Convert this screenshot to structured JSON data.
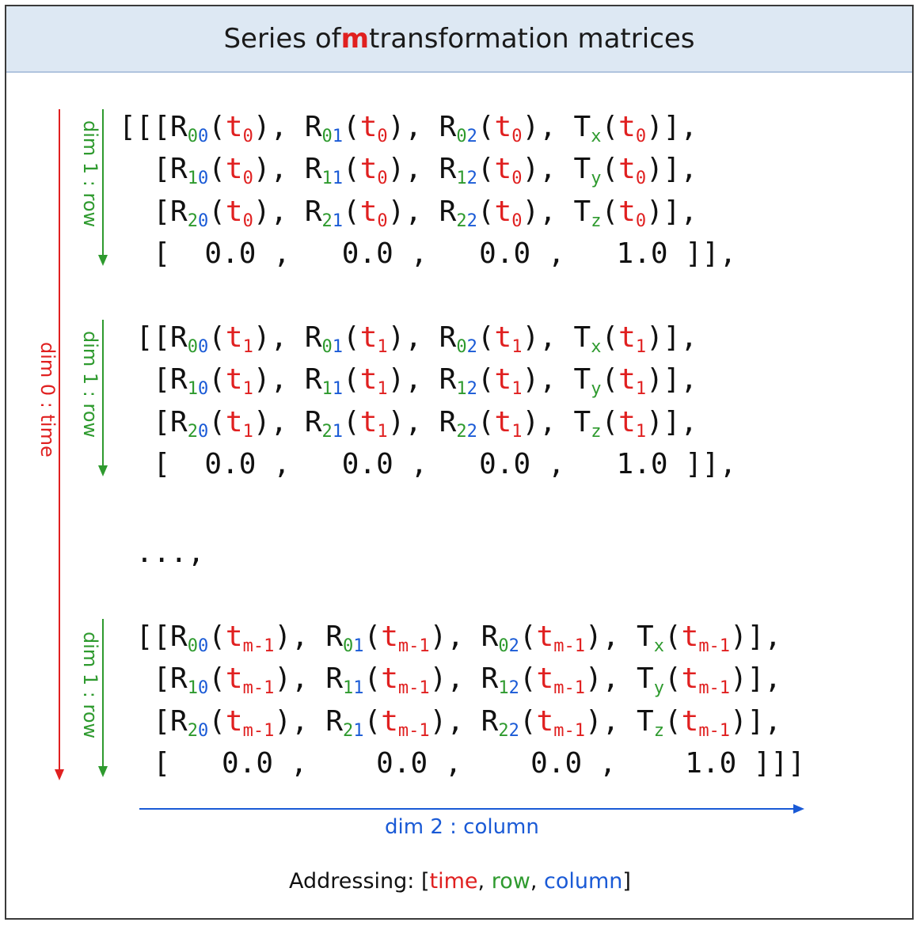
{
  "title": {
    "prefix": "Series of ",
    "highlight": "m",
    "suffix": " transformation matrices"
  },
  "axes": {
    "dim0": "dim 0 : time",
    "dim1": "dim 1 : row",
    "dim2": "dim 2 : column"
  },
  "matrices": [
    {
      "time": "0",
      "opener": "[[[",
      "closer": "]],"
    },
    {
      "time": "1",
      "opener": " [[",
      "closer": "]],"
    },
    {
      "time": "m-1",
      "opener": " [[",
      "closer": "]]]"
    }
  ],
  "ellipsis": " ...,",
  "row_labels": [
    "R",
    "R",
    "R",
    "T"
  ],
  "translation_subs": [
    "x",
    "y",
    "z"
  ],
  "bottom_row_values": [
    "0.0",
    "0.0",
    "0.0",
    "1.0"
  ],
  "addressing": {
    "prefix": "Addressing: [",
    "time": "time",
    "sep1": ", ",
    "row": "row",
    "sep2": ", ",
    "column": "column",
    "suffix": "]"
  },
  "colors": {
    "time": "#e02020",
    "row": "#2e9a2e",
    "column": "#1a5ad6"
  }
}
